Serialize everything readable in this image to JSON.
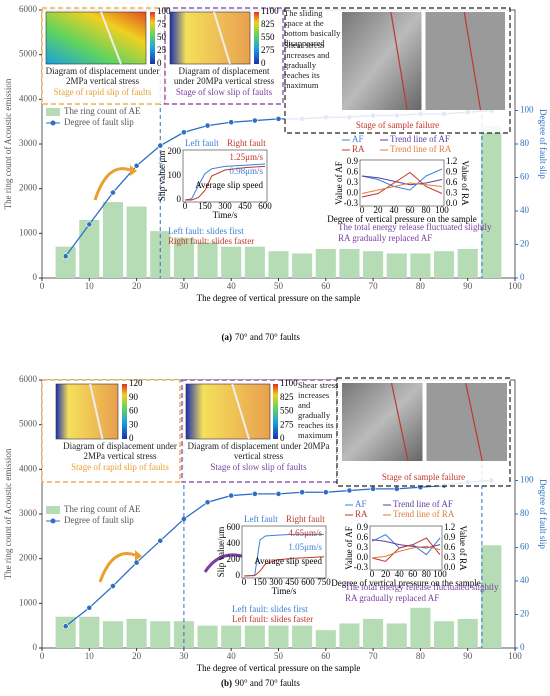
{
  "chart_data": [
    {
      "type": "bar_line",
      "caption_label": "(a)",
      "caption": "70° and 70° faults",
      "xlabel": "The degree of vertical pressure on the sample",
      "ylabel": "The ring count of Acoustic emission",
      "y2label": "Degree of fault slip",
      "x": [
        5,
        10,
        15,
        20,
        25,
        30,
        35,
        40,
        45,
        50,
        55,
        60,
        65,
        70,
        75,
        80,
        85,
        90,
        95
      ],
      "series": [
        {
          "name": "The ring count of AE",
          "color": "#b5dcb5",
          "values": [
            700,
            1300,
            1700,
            1600,
            1050,
            900,
            800,
            700,
            700,
            600,
            550,
            650,
            650,
            600,
            550,
            550,
            600,
            650,
            3400
          ]
        },
        {
          "name": "Degree of fault slip",
          "color": "#2e6fc4",
          "axis": "y2",
          "values": [
            13,
            32,
            51,
            67,
            79,
            87,
            91,
            93,
            94,
            95,
            95,
            96,
            96,
            97,
            97,
            98,
            98,
            99,
            100
          ]
        }
      ],
      "xlim": [
        0,
        100
      ],
      "xticks": [
        0,
        10,
        20,
        30,
        40,
        50,
        60,
        70,
        80,
        90,
        100
      ],
      "ylim": [
        0,
        6000
      ],
      "yticks": [
        0,
        1000,
        2000,
        3000,
        4000,
        5000,
        6000
      ],
      "y2lim": [
        0,
        160
      ],
      "y2ticks": [
        0,
        20,
        40,
        60,
        80,
        100
      ],
      "stage_boundaries": [
        25,
        93
      ],
      "panels": [
        {
          "title": "Diagram of displacement under 2MPa vertical stress",
          "stage": "Stage of rapid slip of faults",
          "colorbar_ticks": [
            100,
            75,
            50,
            25,
            0
          ]
        },
        {
          "title": "Diagram of displacement under 20MPa vertical stress",
          "stage": "Stage of slow slip of faults",
          "colorbar_ticks": [
            1100,
            825,
            550,
            275,
            0
          ]
        }
      ],
      "side_notes": [
        "The sliding space at the bottom basically disappeared",
        "Shear stress increases and gradually reaches its maximum"
      ],
      "failure_label": "Stage of sample failure",
      "slip_inset": {
        "ylabel": "Slip value/μm",
        "xlabel": "Time/s",
        "x": [
          0,
          50,
          100,
          150,
          200,
          300,
          450,
          600
        ],
        "xlim": [
          0,
          600
        ],
        "xticks": [
          0,
          150,
          300,
          450,
          600
        ],
        "ylim": [
          0,
          200
        ],
        "yticks": [
          0,
          100,
          200
        ],
        "series": [
          {
            "name": "Left fault",
            "color": "#3d7fd6",
            "values": [
              0,
              5,
              60,
              110,
              130,
              140,
              145,
              150
            ]
          },
          {
            "name": "Right fault",
            "color": "#c0392b",
            "values": [
              0,
              0,
              10,
              40,
              100,
              125,
              135,
              140
            ]
          }
        ],
        "speeds": [
          "1.25μm/s",
          "0.98μm/s"
        ],
        "speed_label": "Average slip speed",
        "notes": [
          "Left fault: slides first",
          "Right fault: slides faster"
        ]
      },
      "afra_inset": {
        "ylabel": "Value of AF",
        "y2label": "Value of RA",
        "xlabel": "Degree of vertical pressure on the sample",
        "x": [
          0,
          20,
          40,
          60,
          80,
          100
        ],
        "xlim": [
          0,
          100
        ],
        "xticks": [
          0,
          20,
          40,
          60,
          80,
          100
        ],
        "ylim": [
          -0.3,
          0.9
        ],
        "yticks": [
          {
            "value": -0.3,
            "label": "-0.3"
          },
          {
            "value": 0,
            "label": "0.0"
          },
          0.3,
          0.6,
          0.9
        ],
        "y2lim": [
          0,
          1.2
        ],
        "y2ticks": [
          {
            "value": 0,
            "label": "0.0"
          },
          0.3,
          0.6,
          0.9,
          1.2
        ],
        "series": [
          {
            "name": "AF",
            "color": "#3d7fd6",
            "values": [
              0.5,
              0.4,
              0.2,
              0.1,
              0.5,
              0.7
            ]
          },
          {
            "name": "Trend line of AF",
            "color": "#5a3fa0",
            "values": [
              0.5,
              0.45,
              0.35,
              0.25,
              0.3,
              0.4
            ]
          },
          {
            "name": "RA",
            "color": "#c0392b",
            "axis": "y2",
            "values": [
              0.2,
              0.3,
              0.6,
              0.9,
              0.5,
              0.3
            ]
          },
          {
            "name": "Trend line of RA",
            "color": "#e07b39",
            "axis": "y2",
            "values": [
              0.3,
              0.4,
              0.5,
              0.6,
              0.55,
              0.5
            ]
          }
        ],
        "notes": [
          "The total energy release fluctuated slightly",
          "RA gradually replaced AF"
        ]
      }
    },
    {
      "type": "bar_line",
      "caption_label": "(b)",
      "caption": "90° and 70° faults",
      "xlabel": "The degree of vertical pressure on the sample",
      "ylabel": "The ring count of Acoustic emission",
      "y2label": "Degree of fault slip",
      "x": [
        5,
        10,
        15,
        20,
        25,
        30,
        35,
        40,
        45,
        50,
        55,
        60,
        65,
        70,
        75,
        80,
        85,
        90,
        95
      ],
      "series": [
        {
          "name": "The ring count of AE",
          "color": "#b5dcb5",
          "values": [
            700,
            700,
            600,
            650,
            600,
            600,
            500,
            500,
            500,
            500,
            500,
            400,
            550,
            650,
            550,
            900,
            600,
            650,
            2300
          ]
        },
        {
          "name": "Degree of fault slip",
          "color": "#2e6fc4",
          "axis": "y2",
          "values": [
            13,
            24,
            37,
            51,
            64,
            77,
            87,
            91,
            92,
            92,
            93,
            93,
            94,
            95,
            95,
            96,
            97,
            99,
            100
          ]
        }
      ],
      "xlim": [
        0,
        100
      ],
      "xticks": [
        0,
        10,
        20,
        30,
        40,
        50,
        60,
        70,
        80,
        90,
        100
      ],
      "ylim": [
        0,
        6000
      ],
      "yticks": [
        0,
        1000,
        2000,
        3000,
        4000,
        5000,
        6000
      ],
      "y2lim": [
        0,
        160
      ],
      "y2ticks": [
        0,
        20,
        40,
        60,
        80,
        100
      ],
      "stage_boundaries": [
        30,
        93
      ],
      "panels": [
        {
          "title": "Diagram of displacement under 2MPa vertical stress",
          "stage": "Stage of rapid slip of faults",
          "colorbar_ticks": [
            120,
            90,
            60,
            30,
            0
          ]
        },
        {
          "title": "Diagram of displacement under 20MPa vertical stress",
          "stage": "Stage of slow slip of faults",
          "colorbar_ticks": [
            1100,
            825,
            550,
            275,
            0
          ]
        }
      ],
      "side_notes": [
        "Shear stress increases and gradually reaches its maximum"
      ],
      "failure_label": "Stage of sample failure",
      "slip_inset": {
        "ylabel": "Slip value/μm",
        "xlabel": "Time/s",
        "x": [
          0,
          100,
          150,
          200,
          300,
          450,
          600,
          750
        ],
        "xlim": [
          0,
          750
        ],
        "xticks": [
          0,
          150,
          300,
          450,
          600,
          750
        ],
        "ylim": [
          0,
          600
        ],
        "yticks": [
          0,
          200,
          400,
          600
        ],
        "series": [
          {
            "name": "Left fault",
            "color": "#3d7fd6",
            "values": [
              0,
              10,
              450,
              500,
              510,
              520,
              520,
              520
            ]
          },
          {
            "name": "Right fault",
            "color": "#c0392b",
            "values": [
              0,
              5,
              60,
              150,
              200,
              220,
              230,
              240
            ]
          }
        ],
        "speeds": [
          "4.65μm/s",
          "1.05μm/s"
        ],
        "speed_label": "Average slip speed",
        "notes": [
          "Left fault: slides first",
          "Left fault: slides faster"
        ]
      },
      "afra_inset": {
        "ylabel": "Value of AF",
        "y2label": "Value of RA",
        "xlabel": "Degree of vertical pressure on the sample",
        "x": [
          0,
          20,
          40,
          60,
          80,
          100
        ],
        "xlim": [
          0,
          100
        ],
        "xticks": [
          0,
          20,
          40,
          60,
          80,
          100
        ],
        "ylim": [
          -0.3,
          0.9
        ],
        "yticks": [
          {
            "value": -0.3,
            "label": "-0.3"
          },
          {
            "value": 0,
            "label": "0.0"
          },
          0.3,
          0.6,
          0.9
        ],
        "y2lim": [
          0,
          1.2
        ],
        "y2ticks": [
          {
            "value": 0,
            "label": "0.0"
          },
          0.3,
          0.6,
          0.9,
          1.2
        ],
        "series": [
          {
            "name": "AF",
            "color": "#3d7fd6",
            "values": [
              0.5,
              0.7,
              0.3,
              0.4,
              0.1,
              0.6
            ]
          },
          {
            "name": "Trend line of AF",
            "color": "#5a3fa0",
            "values": [
              0.55,
              0.5,
              0.4,
              0.35,
              0.3,
              0.4
            ]
          },
          {
            "name": "RA",
            "color": "#c0392b",
            "axis": "y2",
            "values": [
              0.3,
              0.2,
              0.6,
              0.7,
              0.9,
              0.4
            ]
          },
          {
            "name": "Trend line of RA",
            "color": "#e07b39",
            "axis": "y2",
            "values": [
              0.3,
              0.35,
              0.5,
              0.6,
              0.65,
              0.55
            ]
          }
        ],
        "notes": [
          "The total energy release fluctuated slightly",
          "RA gradually replaced AF"
        ]
      }
    }
  ]
}
